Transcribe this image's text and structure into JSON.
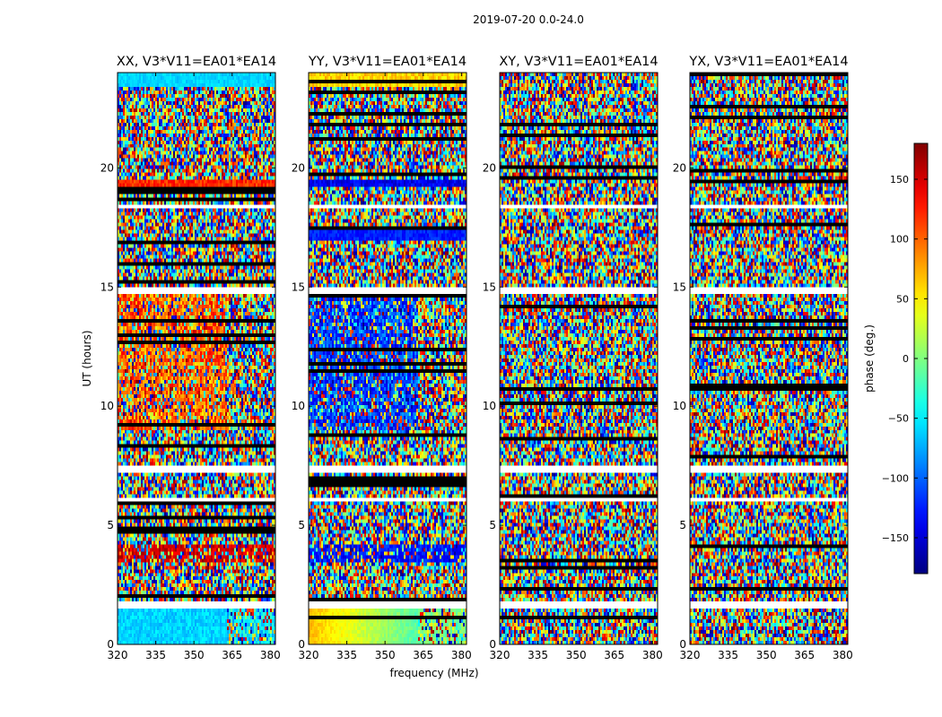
{
  "chart_data": {
    "type": "heatmap",
    "title": "2019-07-20 0.0-24.0",
    "xlabel": "frequency (MHz)",
    "ylabel": "UT (hours)",
    "xlim": [
      320,
      382
    ],
    "ylim": [
      0,
      24
    ],
    "xticks": [
      320,
      335,
      350,
      365,
      380
    ],
    "yticks": [
      0,
      5,
      10,
      15,
      20
    ],
    "panels": [
      {
        "title": "XX, V3*V11=EA01*EA14",
        "mode": "xx"
      },
      {
        "title": "YY, V3*V11=EA01*EA14",
        "mode": "yy"
      },
      {
        "title": "XY, V3*V11=EA01*EA14",
        "mode": "noise"
      },
      {
        "title": "YX, V3*V11=EA01*EA14",
        "mode": "noise"
      }
    ],
    "colorbar": {
      "label": "phase (deg.)",
      "colormap": "jet",
      "range": [
        -180,
        180
      ],
      "ticks": [
        150,
        100,
        50,
        0,
        -50,
        -100,
        -150
      ],
      "tick_labels": [
        "150",
        "100",
        "50",
        "0",
        "−50",
        "−100",
        "−150"
      ]
    },
    "flagged_bands_hours": [
      [
        1.45,
        1.75
      ],
      [
        5.95,
        6.15
      ],
      [
        7.15,
        7.45
      ],
      [
        14.75,
        14.95
      ],
      [
        18.25,
        18.45
      ],
      [
        19.45,
        19.55
      ]
    ]
  }
}
